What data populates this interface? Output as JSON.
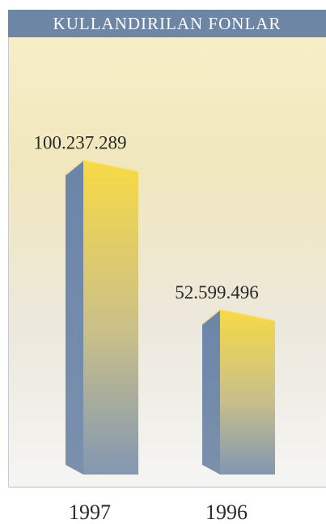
{
  "chart_data": {
    "type": "bar",
    "title": "KULLANDIRILAN FONLAR",
    "categories": [
      "1997",
      "1996"
    ],
    "values": [
      100237289,
      52599496
    ],
    "value_labels": [
      "100.237.289",
      "52.599.496"
    ],
    "ylim": [
      0,
      110000000
    ],
    "grid": false,
    "legend": "none"
  },
  "colors": {
    "banner": "#6d86a6",
    "bar_front_top": "#f6d84a",
    "bar_front_bottom": "#7f93ae",
    "bar_side": "#6f88ab",
    "bar_top": "#f2dc85"
  }
}
